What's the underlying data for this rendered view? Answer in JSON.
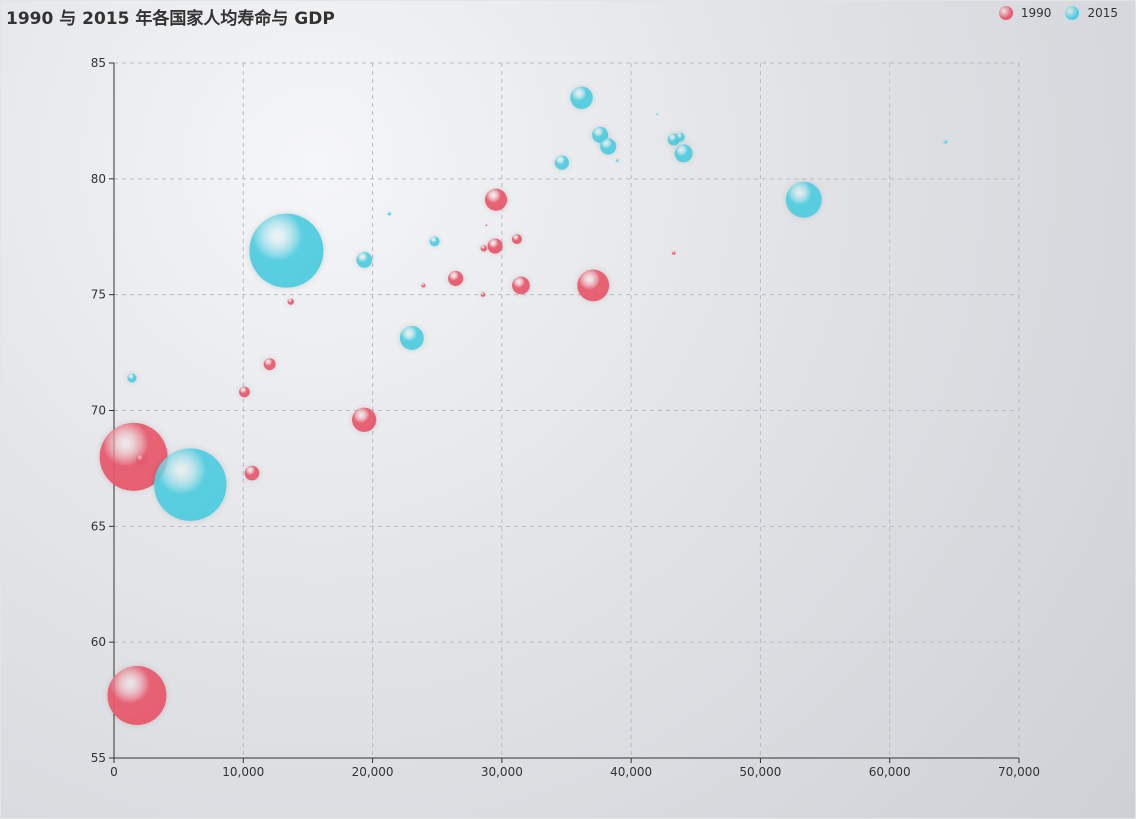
{
  "title": "1990 与 2015 年各国家人均寿命与 GDP",
  "legend": {
    "items": [
      {
        "label": "1990",
        "color": "#e8596c"
      },
      {
        "label": "2015",
        "color": "#4fcde0"
      }
    ]
  },
  "colors": {
    "series_1990": "#e8596c",
    "series_2015": "#4fcde0",
    "grid": "#b8bcc2",
    "axis": "#333333"
  },
  "chart_data": {
    "type": "scatter",
    "title": "1990 与 2015 年各国家人均寿命与 GDP",
    "xlabel": "",
    "ylabel": "",
    "xlim": [
      0,
      70000
    ],
    "ylim": [
      55,
      85
    ],
    "x_ticks": [
      "0",
      "10,000",
      "20,000",
      "30,000",
      "40,000",
      "50,000",
      "60,000",
      "70,000"
    ],
    "y_ticks": [
      "55",
      "60",
      "65",
      "70",
      "75",
      "80",
      "85"
    ],
    "grid": true,
    "legend_position": "top-right",
    "series": [
      {
        "name": "1990",
        "points": [
          {
            "x": 1516,
            "y": 68.0,
            "size": 1154605773
          },
          {
            "x": 1777,
            "y": 57.7,
            "size": 870601776
          },
          {
            "x": 2076,
            "y": 67.9,
            "size": 20000000
          },
          {
            "x": 10088,
            "y": 70.8,
            "size": 28599000
          },
          {
            "x": 10670,
            "y": 67.3,
            "size": 53994605
          },
          {
            "x": 12037,
            "y": 72.0,
            "size": 35640000
          },
          {
            "x": 13670,
            "y": 74.7,
            "size": 10000000
          },
          {
            "x": 19349,
            "y": 69.6,
            "size": 147568552
          },
          {
            "x": 23919,
            "y": 75.4,
            "size": 4500000
          },
          {
            "x": 26424,
            "y": 75.7,
            "size": 57110117
          },
          {
            "x": 28530,
            "y": 75.0,
            "size": 5000000
          },
          {
            "x": 28599,
            "y": 77.0,
            "size": 10000000
          },
          {
            "x": 28800,
            "y": 78.0,
            "size": 400000
          },
          {
            "x": 29476,
            "y": 77.1,
            "size": 56943299
          },
          {
            "x": 29550,
            "y": 79.1,
            "size": 122249285
          },
          {
            "x": 31163,
            "y": 77.4,
            "size": 25000000
          },
          {
            "x": 31476,
            "y": 75.4,
            "size": 78958237
          },
          {
            "x": 37062,
            "y": 75.4,
            "size": 252847810
          },
          {
            "x": 43294,
            "y": 76.8,
            "size": 3000000
          }
        ]
      },
      {
        "name": "2015",
        "points": [
          {
            "x": 1390,
            "y": 71.4,
            "size": 20000000
          },
          {
            "x": 5903,
            "y": 66.8,
            "size": 1311027000
          },
          {
            "x": 13334,
            "y": 76.9,
            "size": 1371220000
          },
          {
            "x": 19360,
            "y": 76.5,
            "size": 62000000
          },
          {
            "x": 21291,
            "y": 78.5,
            "size": 3000000
          },
          {
            "x": 23038,
            "y": 73.13,
            "size": 143456918
          },
          {
            "x": 24795,
            "y": 77.3,
            "size": 25000000
          },
          {
            "x": 34644,
            "y": 80.7,
            "size": 50293439
          },
          {
            "x": 36162,
            "y": 83.5,
            "size": 126573481
          },
          {
            "x": 37599,
            "y": 81.9,
            "size": 64395345
          },
          {
            "x": 38225,
            "y": 81.4,
            "size": 64715810
          },
          {
            "x": 38923,
            "y": 80.8,
            "size": 2000000
          },
          {
            "x": 42000,
            "y": 82.8,
            "size": 200000
          },
          {
            "x": 43294,
            "y": 81.7,
            "size": 35939927
          },
          {
            "x": 43800,
            "y": 81.8,
            "size": 20000000
          },
          {
            "x": 44056,
            "y": 81.1,
            "size": 80688545
          },
          {
            "x": 53354,
            "y": 79.1,
            "size": 321773631
          },
          {
            "x": 64304,
            "y": 81.6,
            "size": 3000000
          }
        ]
      }
    ]
  }
}
